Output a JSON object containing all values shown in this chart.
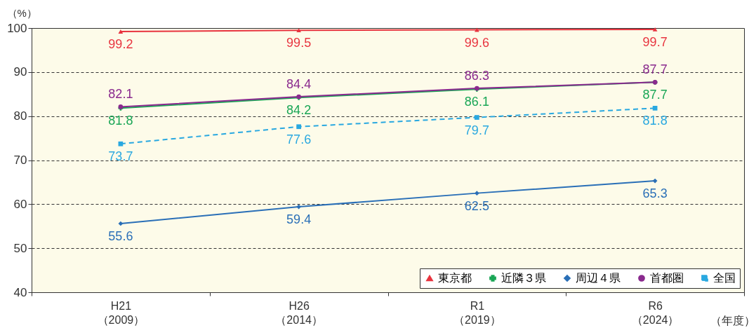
{
  "chart_data": {
    "type": "line",
    "ylabel": "（%）",
    "xlabel": "（年度）",
    "categories": [
      "H21\n（2009）",
      "H26\n（2014）",
      "R1\n（2019）",
      "R6\n（2024）"
    ],
    "ylim": [
      40,
      100
    ],
    "yticks": [
      40,
      50,
      60,
      70,
      80,
      90,
      100
    ],
    "grid": "y",
    "legend": "bottom right",
    "data_labels": true,
    "series": [
      {
        "name": "東京都",
        "color": "#e8343f",
        "marker": "triangle",
        "values": [
          99.2,
          99.5,
          99.6,
          99.7
        ]
      },
      {
        "name": "近隣３県",
        "color": "#1aa656",
        "marker": "cross",
        "values": [
          81.8,
          84.2,
          86.1,
          87.7
        ]
      },
      {
        "name": "周辺４県",
        "color": "#2a6fb7",
        "marker": "diamond",
        "values": [
          55.6,
          59.4,
          62.5,
          65.3
        ]
      },
      {
        "name": "首都圏",
        "color": "#8a2a8e",
        "marker": "circle",
        "values": [
          82.1,
          84.4,
          86.3,
          87.7
        ]
      },
      {
        "name": "全国",
        "color": "#29a8e0",
        "marker": "square",
        "line_style": "dashed",
        "values": [
          73.7,
          77.6,
          79.7,
          81.8
        ]
      }
    ]
  }
}
